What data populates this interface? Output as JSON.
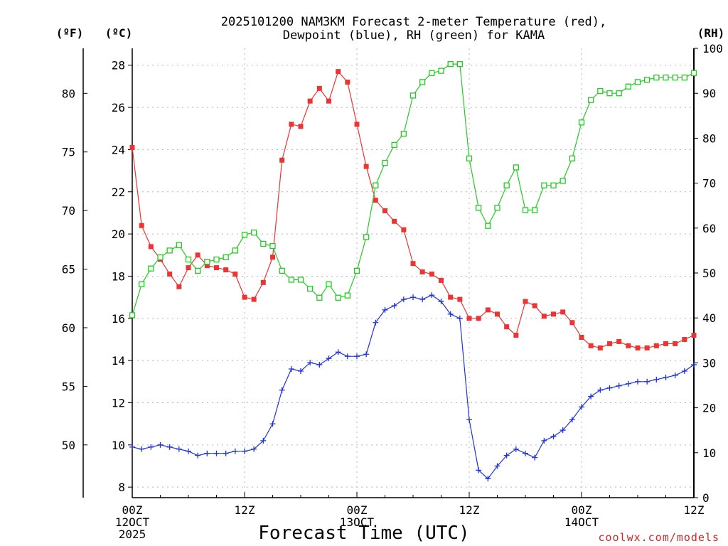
{
  "chart_data": {
    "type": "line",
    "title_line1": "2025101200 NAM3KM Forecast 2-meter Temperature (red),",
    "title_line2": "Dewpoint (blue), RH (green) for KAMA",
    "unit_labels": {
      "fahrenheit": "(ºF)",
      "celsius": "(ºC)",
      "rh": "(RH)"
    },
    "xlabel": "Forecast Time (UTC)",
    "credit": "coolwx.com/models",
    "xlim_hours": [
      0,
      60
    ],
    "ylim_c": [
      7.5,
      28.8
    ],
    "ylim_rh": [
      0,
      100
    ],
    "x_ticks": [
      {
        "hour": 0,
        "lines": [
          "00Z",
          "12OCT",
          "2025"
        ]
      },
      {
        "hour": 12,
        "lines": [
          "12Z"
        ]
      },
      {
        "hour": 24,
        "lines": [
          "00Z",
          "13OCT"
        ]
      },
      {
        "hour": 36,
        "lines": [
          "12Z"
        ]
      },
      {
        "hour": 48,
        "lines": [
          "00Z",
          "14OCT"
        ]
      },
      {
        "hour": 60,
        "lines": [
          "12Z"
        ]
      }
    ],
    "c_ticks": [
      "8",
      "10",
      "12",
      "14",
      "16",
      "18",
      "20",
      "22",
      "24",
      "26",
      "28"
    ],
    "f_ticks": [
      "50",
      "55",
      "60",
      "65",
      "70",
      "75",
      "80"
    ],
    "rh_ticks": [
      "0",
      "10",
      "20",
      "30",
      "40",
      "50",
      "60",
      "70",
      "80",
      "90",
      "100"
    ],
    "series": [
      {
        "name": "Temperature",
        "unit": "C",
        "color": "#ee3333",
        "values": [
          24.1,
          20.4,
          19.4,
          18.8,
          18.1,
          17.5,
          18.4,
          19.0,
          18.5,
          18.4,
          18.3,
          18.1,
          17.0,
          16.9,
          17.7,
          18.9,
          23.5,
          25.2,
          25.1,
          26.3,
          26.9,
          26.3,
          27.7,
          27.2,
          25.2,
          23.2,
          21.6,
          21.1,
          20.6,
          20.2,
          18.6,
          18.2,
          18.1,
          17.8,
          17.0,
          16.9,
          16.0,
          16.0,
          16.4,
          16.2,
          15.6,
          15.2,
          16.8,
          16.6,
          16.1,
          16.2,
          16.3,
          15.8,
          15.1,
          14.7,
          14.6,
          14.8,
          14.9,
          14.7,
          14.6,
          14.6,
          14.7,
          14.8,
          14.8,
          15.0,
          15.2
        ]
      },
      {
        "name": "Dewpoint",
        "unit": "C",
        "color": "#2233dd",
        "values": [
          9.9,
          9.8,
          9.9,
          10.0,
          9.9,
          9.8,
          9.7,
          9.5,
          9.6,
          9.6,
          9.6,
          9.7,
          9.7,
          9.8,
          10.2,
          11.0,
          12.6,
          13.6,
          13.5,
          13.9,
          13.8,
          14.1,
          14.4,
          14.2,
          14.2,
          14.3,
          15.8,
          16.4,
          16.6,
          16.9,
          17.0,
          16.9,
          17.1,
          16.8,
          16.2,
          16.0,
          11.2,
          8.8,
          8.4,
          9.0,
          9.5,
          9.8,
          9.6,
          9.4,
          10.2,
          10.4,
          10.7,
          11.2,
          11.8,
          12.3,
          12.6,
          12.7,
          12.8,
          12.9,
          13.0,
          13.0,
          13.1,
          13.2,
          13.3,
          13.5,
          13.8
        ]
      },
      {
        "name": "RH",
        "unit": "%",
        "color": "#22cc22",
        "values": [
          40.6,
          47.5,
          51.0,
          53.5,
          55.0,
          56.2,
          53.0,
          50.5,
          52.5,
          53.0,
          53.5,
          55.0,
          58.5,
          59.0,
          56.5,
          56.0,
          50.5,
          48.5,
          48.5,
          46.5,
          44.5,
          47.5,
          44.5,
          45.0,
          50.5,
          58.0,
          69.5,
          74.5,
          78.5,
          81.0,
          89.5,
          92.5,
          94.5,
          95.0,
          96.5,
          96.5,
          75.5,
          64.5,
          60.5,
          64.5,
          69.5,
          73.5,
          64.0,
          64.0,
          69.5,
          69.5,
          70.5,
          75.5,
          83.5,
          88.5,
          90.5,
          90.0,
          90.0,
          91.5,
          92.5,
          93.0,
          93.5,
          93.5,
          93.5,
          93.5,
          94.5
        ]
      }
    ]
  }
}
